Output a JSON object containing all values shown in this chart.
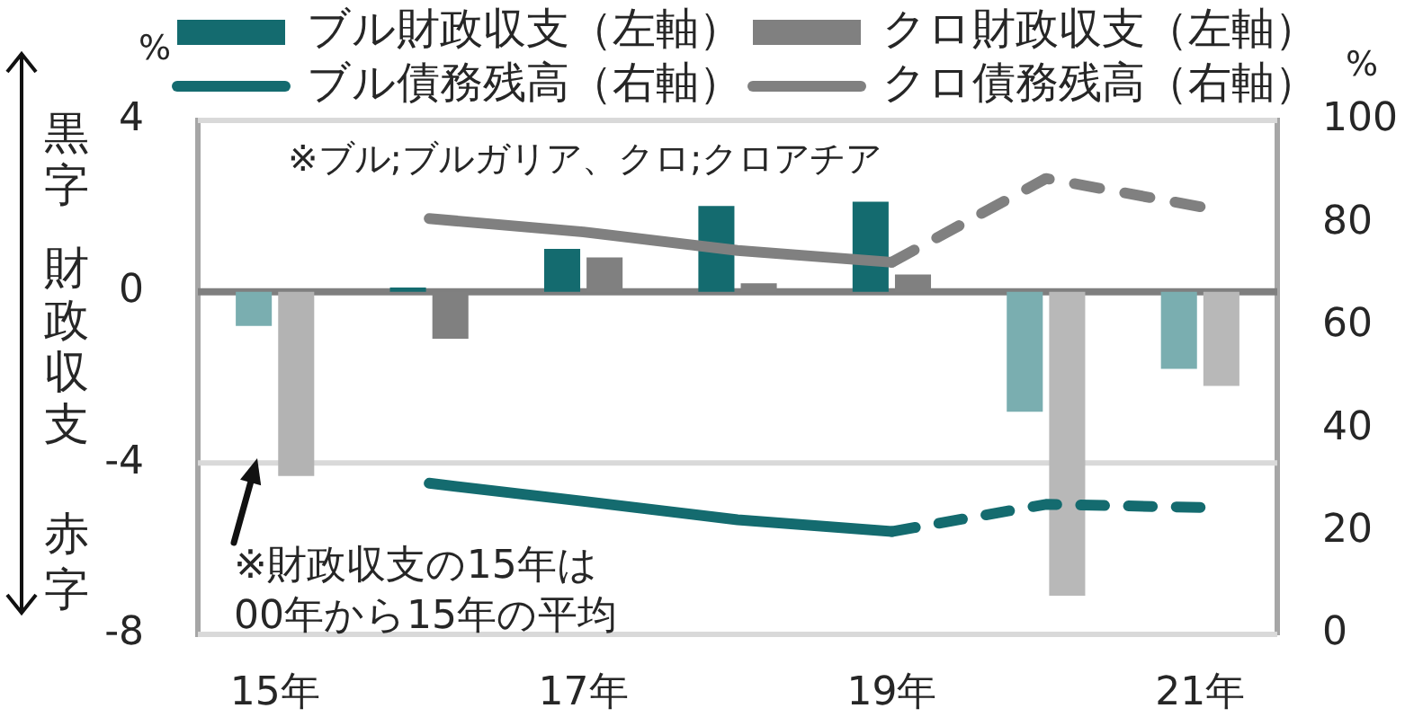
{
  "chart_data": {
    "type": "bar",
    "categories": [
      "15年",
      null,
      "17年",
      null,
      "19年",
      null,
      "21年"
    ],
    "series": [
      {
        "name": "ブル財政収支（左軸）",
        "type": "bar",
        "color": "#146b6f",
        "colors": [
          "#7aaeb0",
          "#146b6f",
          "#146b6f",
          "#146b6f",
          "#146b6f",
          "#7aaeb0",
          "#7aaeb0"
        ],
        "values": [
          -0.8,
          0.1,
          1.0,
          2.0,
          2.1,
          -2.8,
          -1.8
        ]
      },
      {
        "name": "クロ財政収支（左軸）",
        "color": "#808080",
        "colors": [
          "#b3b3b3",
          "#808080",
          "#808080",
          "#808080",
          "#808080",
          "#b8b8b8",
          "#b8b8b8"
        ],
        "values": [
          -4.3,
          -1.1,
          0.8,
          0.2,
          0.4,
          -7.1,
          -2.2
        ]
      },
      {
        "name": "ブル債務残高（右軸）",
        "type": "line",
        "axis": "y2",
        "color": "#146b6f",
        "values": [
          null,
          29.4,
          25.9,
          22.3,
          20.0,
          null,
          null
        ]
      },
      {
        "type": "line",
        "axis": "y2",
        "color": "#146b6f",
        "line_style": "dashed",
        "values": [
          null,
          null,
          null,
          null,
          20.0,
          25.3,
          24.7
        ]
      },
      {
        "name": "クロ債務残高（右軸）",
        "type": "line",
        "axis": "y2",
        "color": "#808080",
        "values": [
          null,
          80.9,
          78.3,
          74.7,
          72.4,
          null,
          null
        ]
      },
      {
        "type": "line",
        "axis": "y2",
        "color": "#808080",
        "line_style": "dashed",
        "values": [
          null,
          null,
          null,
          null,
          72.4,
          88.7,
          83.2
        ]
      }
    ],
    "ylabel": "%",
    "y2label": "%",
    "ylim": [
      -8,
      4
    ],
    "yticks": [
      -8,
      -4,
      0,
      4
    ],
    "y2lim": [
      0,
      100
    ],
    "y2ticks": [
      0,
      20,
      40,
      60,
      80,
      100
    ],
    "ref_lines": [
      {
        "axis": "y",
        "value": -4,
        "color": "#d9d9d9"
      }
    ],
    "legend": "top",
    "marker": "none",
    "line_style": "solid",
    "annotations": [
      "※ブル;ブルガリア、クロ;クロアチア",
      "※財政収支の15年は00年から15年の平均",
      "黒字",
      "財政収支",
      "赤字"
    ]
  }
}
